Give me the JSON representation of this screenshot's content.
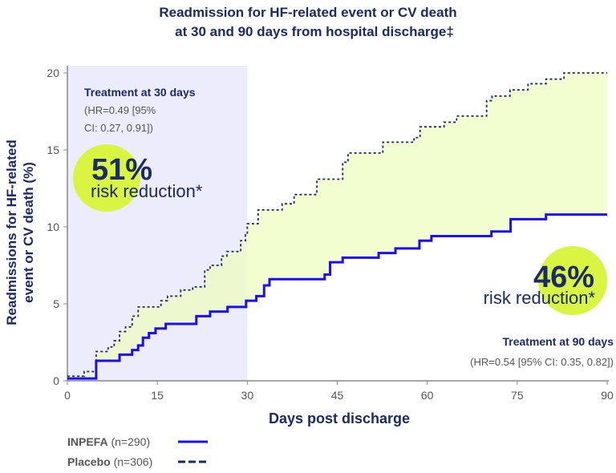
{
  "chart_data": {
    "type": "line",
    "step": true,
    "title_lines": [
      "Readmission for HF-related event or CV death",
      "at 30 and 90 days from hospital discharge‡"
    ],
    "xlabel": "Days post discharge",
    "ylabel_lines": [
      "Readmissions for HF-related",
      "event or CV death (%)"
    ],
    "xlim": [
      0,
      90
    ],
    "ylim": [
      0,
      20
    ],
    "xticks": [
      "0",
      "15",
      "30",
      "45",
      "60",
      "75",
      "90"
    ],
    "yticks": [
      "0",
      "5",
      "10",
      "15",
      "20"
    ],
    "grid": false,
    "legend_position": "bottom-left",
    "shaded_region_days": [
      0,
      30
    ],
    "series": [
      {
        "name": "INPEFA (n=290)",
        "style": "solid",
        "color": "#1a0dff",
        "x": [
          0,
          4.8,
          8.7,
          10.8,
          11.8,
          12.6,
          13.6,
          14.7,
          16.4,
          21.5,
          23.8,
          26.7,
          29.8,
          31.5,
          32.8,
          33.7,
          42.9,
          43.8,
          45.9,
          51.9,
          54.7,
          58.7,
          60.7,
          70.7,
          73.9,
          79.8,
          90
        ],
        "y": [
          0.15,
          1.3,
          1.7,
          2.0,
          2.3,
          2.8,
          3.1,
          3.4,
          3.7,
          4.2,
          4.5,
          4.8,
          5.2,
          5.5,
          6.2,
          6.6,
          6.9,
          7.7,
          8.0,
          8.3,
          8.6,
          9.1,
          9.4,
          9.7,
          10.5,
          10.8,
          10.8
        ]
      },
      {
        "name": "Placebo (n=306)",
        "style": "dashed",
        "color": "#1a2a6c",
        "x": [
          0,
          2.8,
          4.8,
          6.8,
          7.8,
          8.7,
          9.7,
          10.8,
          11.8,
          15.6,
          16.7,
          18.9,
          20.9,
          22.9,
          23.8,
          25.7,
          26.6,
          28.9,
          29.7,
          30,
          31.8,
          35.8,
          37.8,
          41.6,
          45.9,
          46.8,
          52.6,
          57.8,
          58.8,
          62.8,
          64.9,
          69.9,
          70.8,
          73.8,
          76.8,
          79.8,
          82.8,
          90
        ],
        "y": [
          0.3,
          0.6,
          1.9,
          2.2,
          2.6,
          3.2,
          3.5,
          4.2,
          4.8,
          5.2,
          5.5,
          5.9,
          6.1,
          7.2,
          7.5,
          8.1,
          8.4,
          9.1,
          9.5,
          10.2,
          11.1,
          11.5,
          12.1,
          13.1,
          14.2,
          14.8,
          15.5,
          15.8,
          16.5,
          16.8,
          17.2,
          18.2,
          18.5,
          18.9,
          19.3,
          19.6,
          20.0,
          20.0
        ]
      }
    ],
    "annotations": {
      "day30": {
        "heading": "Treatment at 30 days",
        "hr_line1": "(HR=0.49 [95%",
        "hr_line2": "CI: 0.27, 0.91])",
        "percent": "51%",
        "label": "risk reduction*"
      },
      "day90": {
        "heading": "Treatment at 90 days",
        "hr": "(HR=0.54 [95% CI: 0.35, 0.82])",
        "percent": "46%",
        "label": "risk reduction*"
      }
    },
    "legend": [
      {
        "name": "INPEFA",
        "n": "(n=290)"
      },
      {
        "name": "Placebo",
        "n": "(n=306)"
      }
    ]
  },
  "colors": {
    "navy": "#1a2a6c",
    "inpefa": "#1a0dff",
    "fill": "#eefcc0",
    "shade": "#ececfc",
    "highlight": "#d9f542"
  }
}
